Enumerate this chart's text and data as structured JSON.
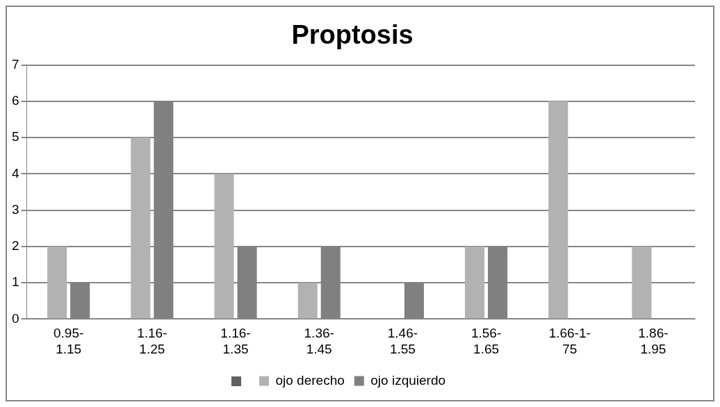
{
  "chart_data": {
    "type": "bar",
    "title": "Proptosis",
    "categories": [
      "0.95-1.15",
      "1.16-1.25",
      "1.16-1.35",
      "1.36-1.45",
      "1.46-1.55",
      "1.56-1.65",
      "1.66-1-75",
      "1.86-1.95"
    ],
    "series": [
      {
        "name": "ojo derecho",
        "color": "#b2b2b2",
        "values": [
          2,
          5,
          4,
          1,
          null,
          2,
          6,
          2
        ]
      },
      {
        "name": "ojo izquierdo",
        "color": "#808080",
        "values": [
          1,
          6,
          2,
          2,
          1,
          2,
          null,
          null
        ]
      }
    ],
    "ylim": [
      0,
      7
    ],
    "yticks": [
      0,
      1,
      2,
      3,
      4,
      5,
      6,
      7
    ],
    "grid": "y",
    "legend": "bottom"
  }
}
